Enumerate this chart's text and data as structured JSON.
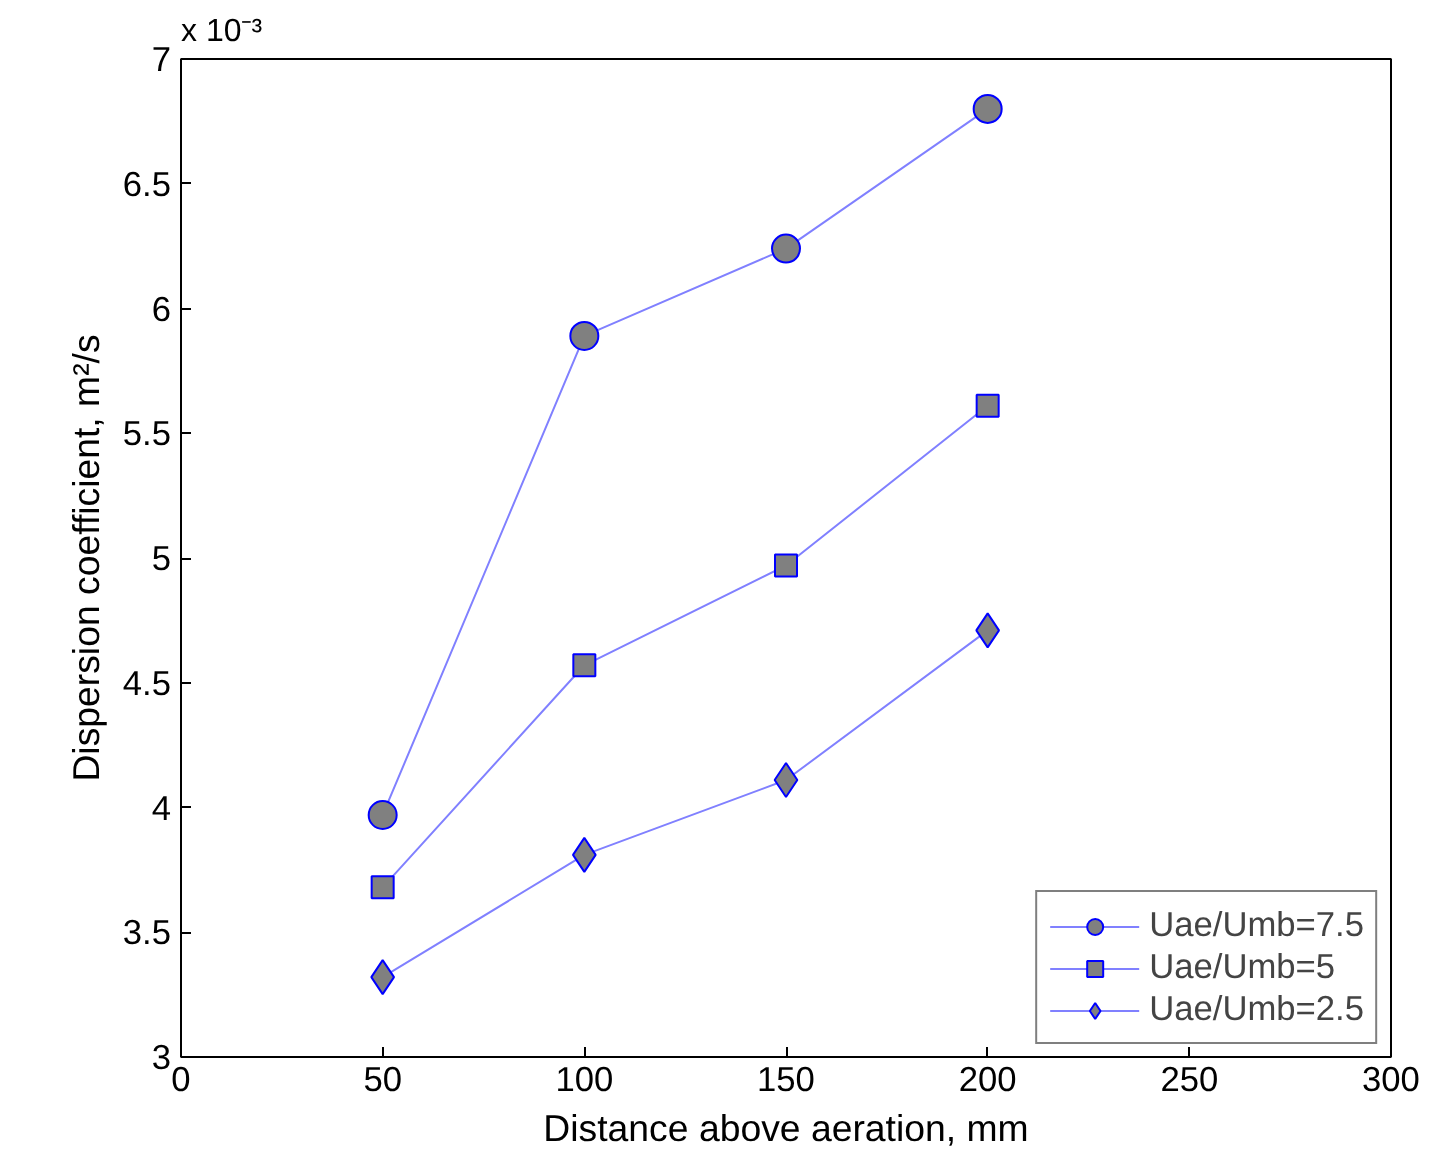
{
  "chart_data": {
    "type": "line",
    "xlabel": "Distance above aeration, mm",
    "ylabel": "Dispersion coefficient, m²/s",
    "annotations": [
      "x 10⁻³"
    ],
    "x": [
      50,
      100,
      150,
      200
    ],
    "series": [
      {
        "name": "Uae/Umb=7.5",
        "color": "#8080ff",
        "marker": "circle",
        "values": [
          3.97,
          5.89,
          6.24,
          6.8
        ]
      },
      {
        "name": "Uae/Umb=5",
        "color": "#8080ff",
        "marker": "square",
        "values": [
          3.68,
          4.57,
          4.97,
          5.61
        ]
      },
      {
        "name": "Uae/Umb=2.5",
        "color": "#8080ff",
        "marker": "diamond",
        "values": [
          3.32,
          3.81,
          4.11,
          4.71
        ]
      }
    ],
    "xlim": [
      0,
      300
    ],
    "xticks": [
      0,
      50,
      100,
      150,
      200,
      250,
      300
    ],
    "ylim": [
      3,
      7
    ],
    "yticks": [
      3,
      3.5,
      4,
      4.5,
      5,
      5.5,
      6,
      6.5,
      7
    ],
    "grid": false,
    "legend": "bottom right"
  }
}
